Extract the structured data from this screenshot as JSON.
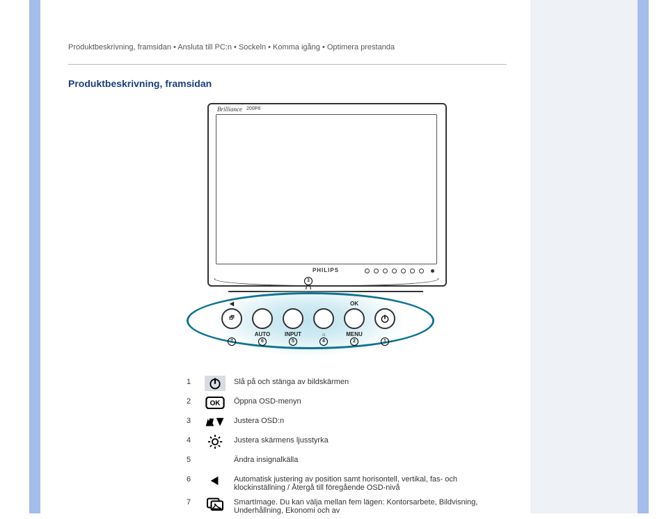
{
  "colors": {
    "stripe": "#a4bdea",
    "right_bg": "#eef1f6",
    "rule": "#b9b9b9",
    "heading": "#1a3f78",
    "callout_ring": "#0f7390",
    "callout_glow": "#cfeaf2"
  },
  "breadcrumbs": "Produktbeskrivning, framsidan • Ansluta till PC:n • Sockeln • Komma igång • Optimera prestanda",
  "section_title": "Produktbeskrivning, framsidan",
  "monitor": {
    "brand_tl": "Brilliance",
    "brand_tl_model": "200P6",
    "brand_center": "PHILIPS"
  },
  "callout": {
    "top_number": "3",
    "buttons": [
      {
        "icon": "sp",
        "over": "◀",
        "under": "",
        "num": "7"
      },
      {
        "icon": "plain",
        "over": "",
        "under": "AUTO",
        "num": "6"
      },
      {
        "icon": "plain",
        "over": "",
        "under": "INPUT",
        "num": "5"
      },
      {
        "icon": "plain",
        "over": "",
        "under": "☼",
        "num": "4"
      },
      {
        "icon": "plain",
        "over": "OK",
        "under": "MENU",
        "num": "2"
      },
      {
        "icon": "power",
        "over": "",
        "under": "",
        "num": "1"
      }
    ]
  },
  "legend": [
    {
      "num": "1",
      "icon": "power",
      "text": "Slå på och stänga av bildskärmen"
    },
    {
      "num": "2",
      "icon": "ok",
      "text": "Öppna OSD-menyn"
    },
    {
      "num": "3",
      "icon": "updown",
      "text": "Justera OSD:n"
    },
    {
      "num": "4",
      "icon": "brightness",
      "text": "Justera skärmens ljusstyrka"
    },
    {
      "num": "5",
      "icon": "none",
      "text": "Ändra insignalkälla"
    },
    {
      "num": "6",
      "icon": "left",
      "text": "Automatisk justering av position samt horisontell, vertikal, fas- och klockinställning / Återgå till föregående OSD-nivå"
    },
    {
      "num": "7",
      "icon": "smartimage",
      "text": "SmartImage. Du kan välja mellan fem lägen: Kontorsarbete, Bildvisning, Underhållning, Ekonomi och av"
    }
  ]
}
